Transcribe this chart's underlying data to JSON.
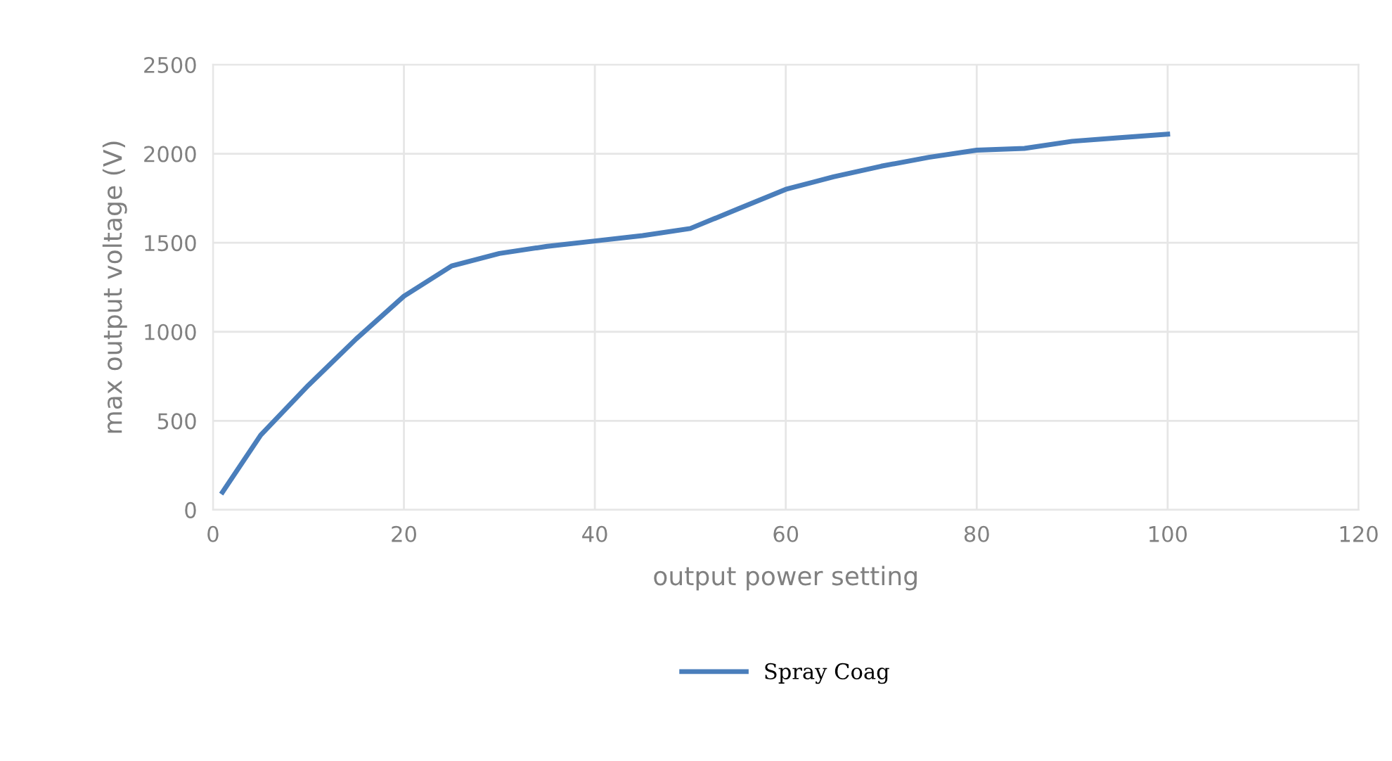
{
  "chart_data": {
    "type": "line",
    "xlabel": "output power setting",
    "ylabel": "max output voltage (V)",
    "x": [
      1,
      5,
      10,
      15,
      20,
      25,
      30,
      35,
      40,
      45,
      50,
      55,
      60,
      65,
      70,
      75,
      80,
      85,
      90,
      95,
      100
    ],
    "series": [
      {
        "name": "Spray Coag",
        "color": "#4a7ebb",
        "values": [
          100,
          420,
          700,
          960,
          1200,
          1370,
          1440,
          1480,
          1510,
          1540,
          1580,
          1690,
          1800,
          1870,
          1930,
          1980,
          2020,
          2030,
          2070,
          2090,
          2110
        ]
      }
    ],
    "xlim": [
      0,
      120
    ],
    "xticks": [
      0,
      20,
      40,
      60,
      80,
      100,
      120
    ],
    "ylim": [
      0,
      2500
    ],
    "yticks": [
      0,
      500,
      1000,
      1500,
      2000,
      2500
    ],
    "grid": true,
    "legend": "bottom",
    "marker": "none",
    "line_style": "solid"
  }
}
